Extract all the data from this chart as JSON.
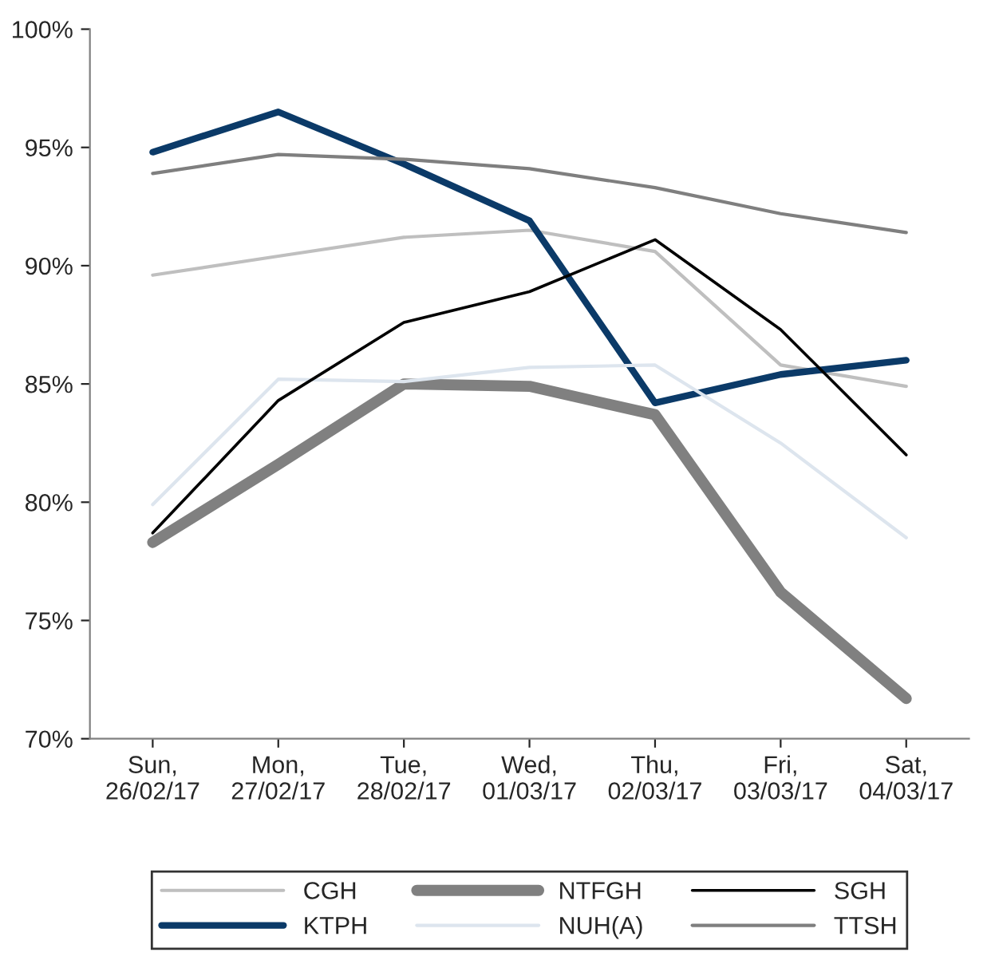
{
  "chart_data": {
    "type": "line",
    "categories": [
      "Sun,\n26/02/17",
      "Mon,\n27/02/17",
      "Tue,\n28/02/17",
      "Wed,\n01/03/17",
      "Thu,\n02/03/17",
      "Fri,\n03/03/17",
      "Sat,\n04/03/17"
    ],
    "series": [
      {
        "name": "CGH",
        "color": "#bfbfbf",
        "values": [
          89.6,
          90.4,
          91.2,
          91.5,
          90.6,
          85.8,
          84.9
        ]
      },
      {
        "name": "KTPH",
        "color": "#0b3a68",
        "values": [
          94.8,
          96.5,
          94.3,
          91.9,
          84.2,
          85.4,
          86.0
        ]
      },
      {
        "name": "NTFGH",
        "color": "#808080",
        "values": [
          78.3,
          81.6,
          85.0,
          84.9,
          83.7,
          76.2,
          71.7
        ]
      },
      {
        "name": "NUH(A)",
        "color": "#dde5ee",
        "values": [
          79.9,
          85.2,
          85.1,
          85.7,
          85.8,
          82.5,
          78.5
        ]
      },
      {
        "name": "SGH",
        "color": "#000000",
        "values": [
          78.7,
          84.3,
          87.6,
          88.9,
          91.1,
          87.3,
          82.0
        ]
      },
      {
        "name": "TTSH",
        "color": "#7f7f7f",
        "values": [
          93.9,
          94.7,
          94.5,
          94.1,
          93.3,
          92.2,
          91.4
        ]
      }
    ],
    "ylim": [
      70,
      100
    ],
    "yticks": [
      {
        "value": 70,
        "label": "70%"
      },
      {
        "value": 75,
        "label": "75%"
      },
      {
        "value": 80,
        "label": "80%"
      },
      {
        "value": 85,
        "label": "85%"
      },
      {
        "value": 90,
        "label": "90%"
      },
      {
        "value": 95,
        "label": "95%"
      },
      {
        "value": 100,
        "label": "100%"
      }
    ],
    "grid": false,
    "legend": "bottom",
    "marker": "none",
    "line_style": "solid"
  }
}
